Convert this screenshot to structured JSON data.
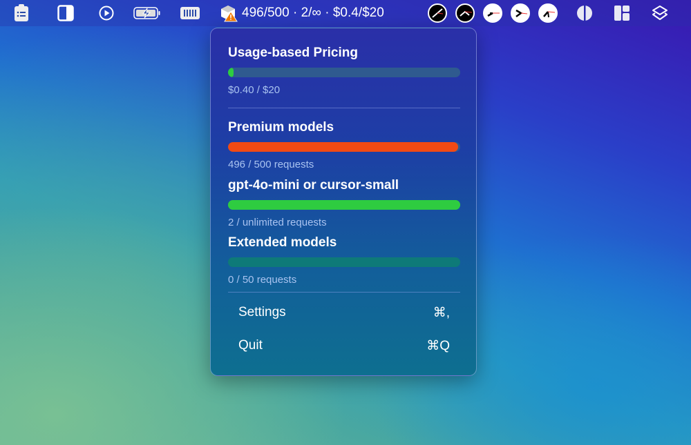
{
  "menubar": {
    "icons": [
      "clipboard-list-icon",
      "sidebar-icon",
      "play-circle-icon",
      "battery-charging-icon",
      "memory-icon",
      "cursor-warning-icon",
      "clock-icon",
      "clock-icon",
      "clock-icon",
      "clock-icon",
      "clock-icon",
      "contrast-icon",
      "layout-icon",
      "layers-icon"
    ],
    "status_text": "496/500 · 2/∞ · $0.4/$20"
  },
  "popup": {
    "usage": {
      "title": "Usage-based Pricing",
      "value": 0.4,
      "max": 20,
      "label": "$0.40 / $20",
      "color": "#2ecc40",
      "track": "#2f5a8f"
    },
    "premium": {
      "title": "Premium models",
      "value": 496,
      "max": 500,
      "label": "496 / 500 requests",
      "color": "#f24a14"
    },
    "small": {
      "title": "gpt-4o-mini or cursor-small",
      "value": 2,
      "max": "unlimited",
      "label": "2 / unlimited requests",
      "color": "#2ecc40"
    },
    "extended": {
      "title": "Extended models",
      "value": 0,
      "max": 50,
      "label": "0 / 50 requests",
      "track": "#0e7a78"
    },
    "menu": [
      {
        "label": "Settings",
        "shortcut": "⌘,"
      },
      {
        "label": "Quit",
        "shortcut": "⌘Q"
      }
    ]
  }
}
